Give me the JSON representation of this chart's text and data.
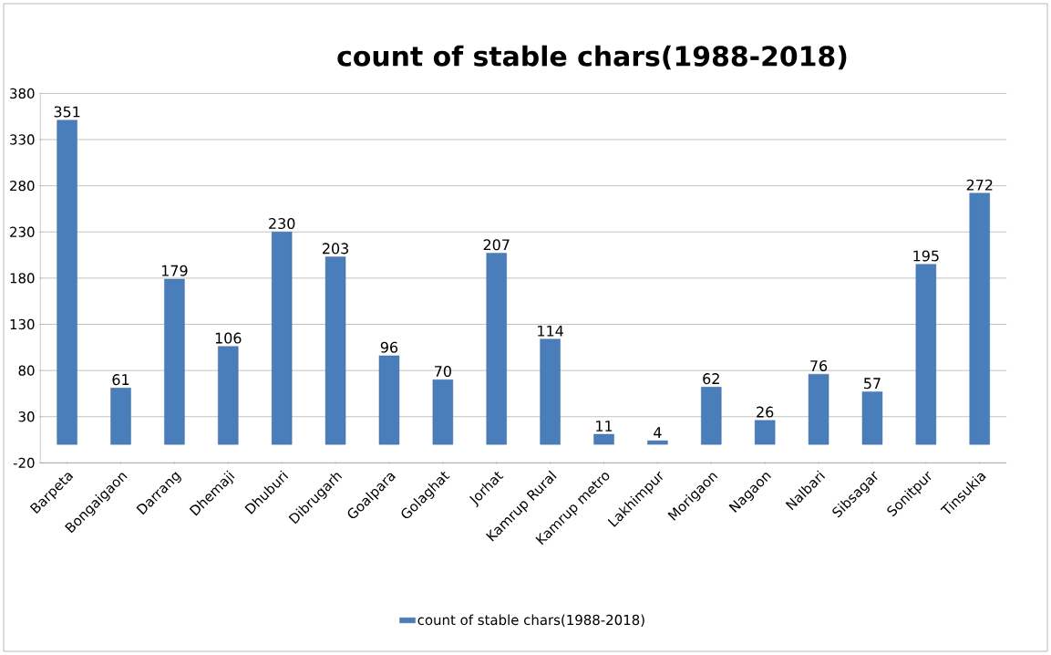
{
  "chart_data": {
    "type": "bar",
    "title": "count of stable chars(1988-2018)",
    "categories": [
      "Barpeta",
      "Bongaigaon",
      "Darrang",
      "Dhemaji",
      "Dhuburi",
      "Dibrugarh",
      "Goalpara",
      "Golaghat",
      "Jorhat",
      "Kamrup Rural",
      "Kamrup metro",
      "Lakhimpur",
      "Morigaon",
      "Nagaon",
      "Nalbari",
      "Sibsagar",
      "Sonitpur",
      "Tinsukia"
    ],
    "series": [
      {
        "name": "count of stable chars(1988-2018)",
        "color": "#4a7ebb",
        "values": [
          351,
          61,
          179,
          106,
          230,
          203,
          96,
          70,
          207,
          114,
          11,
          4,
          62,
          26,
          76,
          57,
          195,
          272
        ]
      }
    ],
    "ylim": [
      -20,
      380
    ],
    "yticks": [
      -20,
      30,
      80,
      130,
      180,
      230,
      280,
      330,
      380
    ],
    "grid": "y",
    "legend": "bottom",
    "data_labels": true
  }
}
